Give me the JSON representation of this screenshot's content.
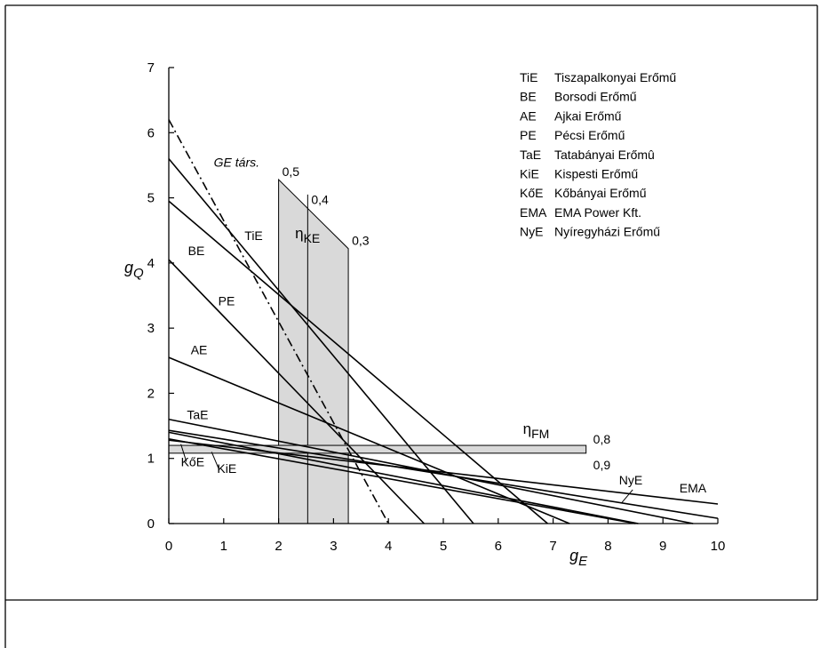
{
  "chart_data": {
    "type": "line",
    "title": "",
    "xlabel": "g",
    "xlabel_sub": "E",
    "ylabel": "g",
    "ylabel_sub": "Q",
    "xlim": [
      0,
      10
    ],
    "ylim": [
      0,
      7
    ],
    "xticks": [
      "0",
      "1",
      "2",
      "3",
      "4",
      "5",
      "6",
      "7",
      "8",
      "9",
      "10"
    ],
    "yticks": [
      "0",
      "1",
      "2",
      "3",
      "4",
      "5",
      "6",
      "7"
    ],
    "grid": false,
    "legend_position": "top-right",
    "legend": [
      {
        "abbr": "TiE",
        "name": "Tiszapalkonyai Erőmű"
      },
      {
        "abbr": "BE",
        "name": "Borsodi Erőmű"
      },
      {
        "abbr": "AE",
        "name": "Ajkai Erőmű"
      },
      {
        "abbr": "PE",
        "name": "Pécsi Erőmű"
      },
      {
        "abbr": "TaE",
        "name": "Tatabányai Erőmû"
      },
      {
        "abbr": "KiE",
        "name": "Kispesti Erőmű"
      },
      {
        "abbr": "KőE",
        "name": "Kőbányai Erőmű"
      },
      {
        "abbr": "EMA",
        "name": "EMA Power Kft."
      },
      {
        "abbr": "NyE",
        "name": "Nyíregyházi Erőmű"
      }
    ],
    "series": [
      {
        "name": "TiE",
        "x": [
          0,
          5.55
        ],
        "y": [
          5.6,
          0
        ],
        "label": "TiE",
        "label_at": [
          1.38,
          4.35
        ]
      },
      {
        "name": "BE",
        "x": [
          0,
          6.9
        ],
        "y": [
          4.95,
          0
        ],
        "label": "BE",
        "label_at": [
          0.35,
          4.12
        ]
      },
      {
        "name": "PE",
        "x": [
          0,
          4.65
        ],
        "y": [
          4.05,
          0
        ],
        "label": "PE",
        "label_at": [
          0.9,
          3.35
        ]
      },
      {
        "name": "AE",
        "x": [
          0,
          7.3
        ],
        "y": [
          2.55,
          0
        ],
        "label": "AE",
        "label_at": [
          0.4,
          2.6
        ]
      },
      {
        "name": "TaE",
        "x": [
          0,
          9.55
        ],
        "y": [
          1.6,
          0
        ],
        "label": "TaE",
        "label_at": [
          0.33,
          1.6
        ]
      },
      {
        "name": "KiE",
        "x": [
          0,
          8.55
        ],
        "y": [
          1.4,
          0
        ],
        "label": "KiE",
        "label_at": [
          0.88,
          0.78
        ]
      },
      {
        "name": "KőE",
        "x": [
          0,
          8.5
        ],
        "y": [
          1.3,
          0
        ],
        "label": "KőE",
        "label_at": [
          0.22,
          0.88
        ]
      },
      {
        "name": "EMA",
        "x": [
          0,
          10
        ],
        "y": [
          1.28,
          0.3
        ],
        "label": "EMA",
        "label_at": [
          9.3,
          0.48
        ]
      },
      {
        "name": "NyE",
        "x": [
          0,
          10
        ],
        "y": [
          1.43,
          0.08
        ],
        "label": "NyE",
        "label_at": [
          8.2,
          0.6
        ]
      },
      {
        "name": "GE társ.",
        "x": [
          0,
          4.0
        ],
        "y": [
          6.2,
          0
        ],
        "style": "dashdot",
        "label": "GE társ.",
        "label_at": [
          0.82,
          5.48
        ]
      }
    ],
    "eta_KE_band": {
      "label": "η",
      "label_sub": "KE",
      "x": [
        2.0,
        3.27
      ],
      "top_y": [
        5.28,
        4.22
      ],
      "divider_x": 2.53,
      "divider_top": 5.05,
      "value_labels": [
        {
          "text": "0,5",
          "x": 2.0,
          "y": 5.28
        },
        {
          "text": "0,4",
          "x": 2.53,
          "y": 4.85
        },
        {
          "text": "0,3",
          "x": 3.27,
          "y": 4.22
        }
      ]
    },
    "eta_FM_band": {
      "label": "η",
      "label_sub": "FM",
      "x": [
        0,
        7.6
      ],
      "y": [
        1.08,
        1.2
      ],
      "value_labels": [
        {
          "text": "0,8",
          "x": 7.6,
          "y": 1.2
        },
        {
          "text": "0,9",
          "x": 7.6,
          "y": 1.08
        }
      ]
    }
  }
}
